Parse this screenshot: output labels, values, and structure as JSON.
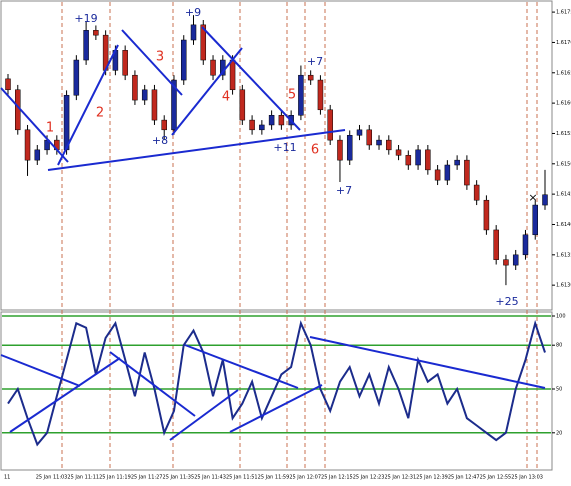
{
  "chart_data": [
    {
      "type": "candlestick",
      "up_color": "#1a2a9c",
      "down_color": "#c0281e",
      "ylim": [
        1.61264,
        1.61765
      ],
      "yticks": [
        1.6175,
        {
          "value": 1.617,
          "label": "1.6170"
        },
        1.6165,
        {
          "value": 1.616,
          "label": "1.6160"
        },
        1.6155,
        {
          "value": 1.615,
          "label": "1.6150"
        },
        1.6145,
        {
          "value": 1.614,
          "label": "1.6140"
        },
        1.6135,
        {
          "value": 1.613,
          "label": "1.6130"
        }
      ],
      "candles": [
        [
          1.6164,
          1.61648,
          1.61614,
          1.61622
        ],
        [
          1.61622,
          1.6163,
          1.61548,
          1.61556
        ],
        [
          1.61556,
          1.61564,
          1.6148,
          1.61506
        ],
        [
          1.61506,
          1.61531,
          1.61498,
          1.61523
        ],
        [
          1.61523,
          1.61547,
          1.61515,
          1.61539
        ],
        [
          1.61539,
          1.61547,
          1.61515,
          1.61523
        ],
        [
          1.61523,
          1.61621,
          1.61515,
          1.61613
        ],
        [
          1.61613,
          1.61679,
          1.61605,
          1.61671
        ],
        [
          1.61671,
          1.61735,
          1.61663,
          1.6172
        ],
        [
          1.6172,
          1.61728,
          1.61704,
          1.61712
        ],
        [
          1.61712,
          1.6172,
          1.61646,
          1.61654
        ],
        [
          1.61654,
          1.61695,
          1.61646,
          1.61687
        ],
        [
          1.61687,
          1.61695,
          1.61638,
          1.61646
        ],
        [
          1.61646,
          1.61654,
          1.61597,
          1.61605
        ],
        [
          1.61605,
          1.6163,
          1.61597,
          1.61622
        ],
        [
          1.61622,
          1.6163,
          1.61564,
          1.61572
        ],
        [
          1.61572,
          1.6158,
          1.6154,
          1.61556
        ],
        [
          1.61556,
          1.61646,
          1.61548,
          1.61638
        ],
        [
          1.61638,
          1.61712,
          1.6163,
          1.61704
        ],
        [
          1.61704,
          1.61745,
          1.61696,
          1.61729
        ],
        [
          1.61729,
          1.61737,
          1.61663,
          1.61671
        ],
        [
          1.61671,
          1.61679,
          1.61638,
          1.61646
        ],
        [
          1.61646,
          1.61679,
          1.61638,
          1.61671
        ],
        [
          1.61671,
          1.61679,
          1.61614,
          1.61622
        ],
        [
          1.61622,
          1.6163,
          1.61564,
          1.61572
        ],
        [
          1.61572,
          1.6158,
          1.61548,
          1.61556
        ],
        [
          1.61556,
          1.61572,
          1.61548,
          1.61564
        ],
        [
          1.61564,
          1.61588,
          1.61556,
          1.6158
        ],
        [
          1.6158,
          1.61588,
          1.61556,
          1.61564
        ],
        [
          1.61564,
          1.61588,
          1.61556,
          1.6158
        ],
        [
          1.6158,
          1.61662,
          1.61572,
          1.61646
        ],
        [
          1.61646,
          1.61654,
          1.6163,
          1.61638
        ],
        [
          1.61638,
          1.61646,
          1.61581,
          1.61589
        ],
        [
          1.61589,
          1.61597,
          1.61531,
          1.61539
        ],
        [
          1.61539,
          1.61547,
          1.6147,
          1.61506
        ],
        [
          1.61506,
          1.61555,
          1.61498,
          1.61547
        ],
        [
          1.61547,
          1.61564,
          1.61539,
          1.61556
        ],
        [
          1.61556,
          1.61564,
          1.61523,
          1.61531
        ],
        [
          1.61531,
          1.61547,
          1.61523,
          1.61539
        ],
        [
          1.61539,
          1.61547,
          1.61515,
          1.61523
        ],
        [
          1.61523,
          1.61531,
          1.61506,
          1.61514
        ],
        [
          1.61514,
          1.61522,
          1.6149,
          1.61498
        ],
        [
          1.61498,
          1.61531,
          1.6149,
          1.61523
        ],
        [
          1.61523,
          1.61531,
          1.61482,
          1.6149
        ],
        [
          1.6149,
          1.61498,
          1.61465,
          1.61473
        ],
        [
          1.61473,
          1.61506,
          1.61465,
          1.61498
        ],
        [
          1.61498,
          1.61514,
          1.6149,
          1.61506
        ],
        [
          1.61506,
          1.61514,
          1.61457,
          1.61465
        ],
        [
          1.61465,
          1.61473,
          1.61432,
          1.6144
        ],
        [
          1.6144,
          1.61448,
          1.61383,
          1.61391
        ],
        [
          1.61391,
          1.61399,
          1.61334,
          1.61342
        ],
        [
          1.61342,
          1.6135,
          1.613,
          1.61333
        ],
        [
          1.61333,
          1.61358,
          1.61325,
          1.6135
        ],
        [
          1.6135,
          1.61391,
          1.61342,
          1.61383
        ],
        [
          1.61383,
          1.6144,
          1.61375,
          1.61432
        ],
        [
          1.61432,
          1.6149,
          1.61424,
          1.61449
        ]
      ],
      "annotations": [
        "+19",
        "+9",
        "+7",
        "+8",
        "+11",
        "+7",
        "+25",
        "×"
      ],
      "wave_labels": [
        "1",
        "2",
        "3",
        "4",
        "5",
        "6"
      ]
    },
    {
      "type": "line",
      "color": "#1c2c8c",
      "grid_color": "#2ea02e",
      "ylim": [
        0,
        100
      ],
      "yticks": [
        100,
        80,
        50,
        20
      ],
      "grid": true,
      "values": [
        40,
        50,
        30,
        12,
        20,
        45,
        70,
        95,
        92,
        60,
        85,
        95,
        70,
        45,
        75,
        50,
        20,
        35,
        80,
        90,
        75,
        45,
        70,
        30,
        40,
        55,
        30,
        45,
        60,
        65,
        95,
        80,
        50,
        35,
        55,
        65,
        45,
        60,
        40,
        65,
        50,
        30,
        70,
        55,
        60,
        40,
        50,
        30,
        25,
        20,
        15,
        20,
        50,
        70,
        95,
        75
      ],
      "x_labels": [
        "11",
        "25 Jan 11:03",
        "25 Jan 11:11",
        "25 Jan 11:19",
        "25 Jan 11:27",
        "25 Jan 11:35",
        "25 Jan 11:43",
        "25 Jan 11:51",
        "25 Jan 11:59",
        "25 Jan 12:07",
        "25 Jan 12:15",
        "25 Jan 12:23",
        "25 Jan 12:31",
        "25 Jan 12:39",
        "25 Jan 12:47",
        "25 Jan 12:55",
        "25 Jan 13:03"
      ]
    }
  ]
}
